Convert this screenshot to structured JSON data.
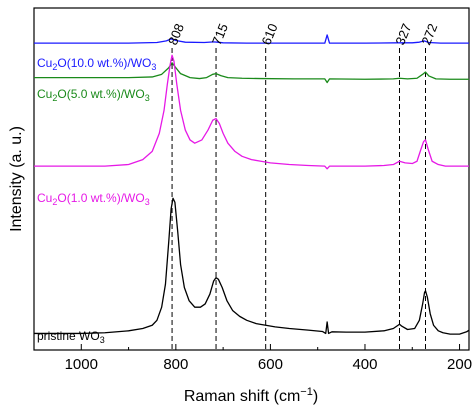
{
  "chart_data": {
    "type": "line",
    "xlabel_main": "Raman shift (cm",
    "xlabel_sup": "−1",
    "xlabel_end": ")",
    "ylabel": "Intensity (a. u.)",
    "xlim": [
      1100,
      180
    ],
    "x_reversed": true,
    "xticks": [
      1000,
      800,
      600,
      400,
      200
    ],
    "xtick_labels": [
      "1000",
      "800",
      "600",
      "400",
      "200"
    ],
    "y_tick_labels": "none",
    "peak_lines": [
      808,
      715,
      610,
      327,
      272
    ],
    "peak_labels": [
      "808",
      "715",
      "610",
      "327",
      "272"
    ],
    "series": [
      {
        "name_main": "Cu",
        "name_sub1": "2",
        "name_mid": "O(10.0 wt.%)/WO",
        "name_sub2": "3",
        "color": "#1a1aff",
        "x": [
          1100,
          900,
          840,
          820,
          810,
          800,
          780,
          740,
          720,
          712,
          700,
          650,
          550,
          485,
          480,
          475,
          400,
          330,
          300,
          285,
          275,
          265,
          240,
          200,
          180
        ],
        "y": [
          0.905,
          0.905,
          0.907,
          0.912,
          0.918,
          0.913,
          0.908,
          0.907,
          0.909,
          0.908,
          0.906,
          0.905,
          0.905,
          0.905,
          0.93,
          0.905,
          0.905,
          0.906,
          0.906,
          0.908,
          0.912,
          0.907,
          0.905,
          0.905,
          0.905
        ]
      },
      {
        "name_main": "Cu",
        "name_sub1": "2",
        "name_mid": "O(5.0 wt.%)/WO",
        "name_sub2": "3",
        "color": "#1a8a1a",
        "x": [
          1100,
          900,
          850,
          830,
          815,
          808,
          800,
          790,
          770,
          750,
          735,
          722,
          715,
          705,
          690,
          660,
          620,
          550,
          485,
          480,
          475,
          400,
          340,
          327,
          310,
          290,
          278,
          272,
          265,
          250,
          220,
          180
        ],
        "y": [
          0.8,
          0.8,
          0.802,
          0.81,
          0.83,
          0.845,
          0.83,
          0.812,
          0.8,
          0.797,
          0.8,
          0.81,
          0.812,
          0.806,
          0.8,
          0.798,
          0.797,
          0.796,
          0.796,
          0.785,
          0.796,
          0.795,
          0.796,
          0.798,
          0.796,
          0.798,
          0.81,
          0.817,
          0.805,
          0.796,
          0.795,
          0.795
        ]
      },
      {
        "name_main": "Cu",
        "name_sub1": "2",
        "name_mid": "O(1.0 wt.%)/WO",
        "name_sub2": "3",
        "color": "#e619e6",
        "x": [
          1100,
          950,
          900,
          870,
          850,
          835,
          825,
          818,
          812,
          808,
          804,
          798,
          790,
          780,
          770,
          760,
          745,
          732,
          722,
          715,
          708,
          700,
          690,
          675,
          660,
          640,
          620,
          600,
          560,
          520,
          485,
          480,
          475,
          440,
          400,
          360,
          340,
          327,
          315,
          300,
          290,
          282,
          276,
          272,
          266,
          258,
          245,
          230,
          210,
          190,
          180
        ],
        "y": [
          0.53,
          0.53,
          0.535,
          0.55,
          0.575,
          0.63,
          0.7,
          0.78,
          0.84,
          0.868,
          0.85,
          0.78,
          0.7,
          0.64,
          0.61,
          0.6,
          0.61,
          0.64,
          0.67,
          0.675,
          0.66,
          0.63,
          0.6,
          0.575,
          0.56,
          0.55,
          0.545,
          0.54,
          0.535,
          0.532,
          0.53,
          0.522,
          0.53,
          0.53,
          0.53,
          0.532,
          0.535,
          0.545,
          0.54,
          0.538,
          0.545,
          0.58,
          0.605,
          0.61,
          0.58,
          0.545,
          0.535,
          0.53,
          0.53,
          0.53,
          0.53
        ]
      },
      {
        "name_main": "pristine WO",
        "name_sub1": "3",
        "name_mid": "",
        "name_sub2": "",
        "color": "#000000",
        "x": [
          1100,
          1000,
          950,
          900,
          870,
          850,
          840,
          830,
          822,
          815,
          810,
          806,
          802,
          796,
          790,
          782,
          772,
          760,
          748,
          738,
          728,
          720,
          715,
          710,
          702,
          692,
          680,
          665,
          650,
          630,
          610,
          590,
          560,
          520,
          490,
          483,
          480,
          477,
          470,
          440,
          400,
          360,
          340,
          330,
          327,
          322,
          310,
          295,
          285,
          278,
          274,
          272,
          268,
          262,
          255,
          245,
          235,
          220,
          200,
          185,
          180
        ],
        "y": [
          0.02,
          0.02,
          0.022,
          0.028,
          0.035,
          0.045,
          0.06,
          0.1,
          0.17,
          0.3,
          0.4,
          0.432,
          0.42,
          0.33,
          0.23,
          0.16,
          0.12,
          0.1,
          0.1,
          0.11,
          0.14,
          0.18,
          0.19,
          0.185,
          0.16,
          0.12,
          0.09,
          0.072,
          0.06,
          0.05,
          0.045,
          0.04,
          0.035,
          0.03,
          0.026,
          0.02,
          0.055,
          0.02,
          0.025,
          0.024,
          0.024,
          0.028,
          0.035,
          0.045,
          0.048,
          0.042,
          0.032,
          0.035,
          0.06,
          0.11,
          0.145,
          0.15,
          0.13,
          0.08,
          0.045,
          0.028,
          0.022,
          0.018,
          0.018,
          0.025,
          0.03
        ]
      }
    ]
  }
}
